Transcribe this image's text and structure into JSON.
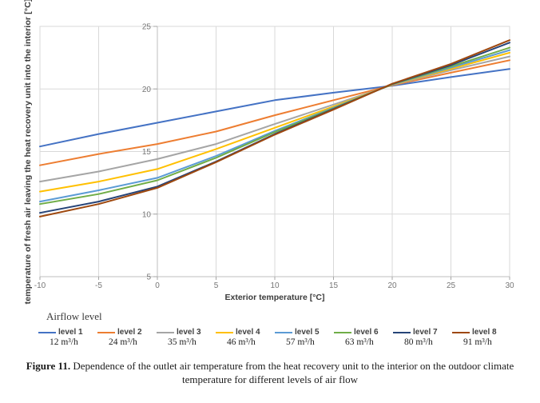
{
  "legend": {
    "title": "Airflow level"
  },
  "caption": {
    "label": "Figure 11.",
    "text": " Dependence of the outlet air temperature from the heat recovery unit to the interior on the outdoor climate temperature for different levels of air flow"
  },
  "chart_data": {
    "type": "line",
    "title": "",
    "xlabel": "Exterior temperature [°C]",
    "ylabel": "temperature of fresh air leaving the heat recovery unit into the interior [°C]",
    "x": [
      -10,
      -5,
      0,
      5,
      10,
      15,
      20,
      25,
      30
    ],
    "x_ticks": [
      -10,
      -5,
      0,
      5,
      10,
      15,
      20,
      25,
      30
    ],
    "y_ticks": [
      5,
      10,
      15,
      20,
      25
    ],
    "xlim": [
      -10,
      30
    ],
    "ylim": [
      5,
      25
    ],
    "grid": true,
    "legend_position": "bottom",
    "series": [
      {
        "name": "level 1",
        "flow": "12 m³/h",
        "color": "#4472C4",
        "values": [
          15.4,
          16.4,
          17.3,
          18.2,
          19.1,
          19.7,
          20.25,
          20.95,
          21.6
        ]
      },
      {
        "name": "level 2",
        "flow": "24 m³/h",
        "color": "#ED7D31",
        "values": [
          13.9,
          14.8,
          15.6,
          16.6,
          17.9,
          19.1,
          20.3,
          21.3,
          22.3
        ]
      },
      {
        "name": "level 3",
        "flow": "35 m³/h",
        "color": "#A5A5A5",
        "values": [
          12.6,
          13.4,
          14.4,
          15.6,
          17.2,
          18.75,
          20.32,
          21.5,
          22.6
        ]
      },
      {
        "name": "level 4",
        "flow": "46 m³/h",
        "color": "#FFC000",
        "values": [
          11.8,
          12.6,
          13.6,
          15.2,
          16.9,
          18.6,
          20.35,
          21.6,
          22.9
        ]
      },
      {
        "name": "level 5",
        "flow": "57 m³/h",
        "color": "#5B9BD5",
        "values": [
          11.0,
          11.9,
          12.9,
          14.65,
          16.65,
          18.5,
          20.37,
          21.7,
          23.1
        ]
      },
      {
        "name": "level 6",
        "flow": "63 m³/h",
        "color": "#70AD47",
        "values": [
          10.8,
          11.6,
          12.7,
          14.5,
          16.55,
          18.45,
          20.38,
          21.8,
          23.3
        ]
      },
      {
        "name": "level 7",
        "flow": "80 m³/h",
        "color": "#264478",
        "values": [
          10.1,
          11.0,
          12.2,
          14.2,
          16.4,
          18.4,
          20.4,
          21.9,
          23.7
        ]
      },
      {
        "name": "level 8",
        "flow": "91 m³/h",
        "color": "#9E480E",
        "values": [
          9.8,
          10.8,
          12.1,
          14.15,
          16.35,
          18.35,
          20.42,
          22.0,
          23.9
        ]
      }
    ]
  },
  "style": {
    "grid_color": "#D9D9D9",
    "axis_color": "#BFBFBF",
    "tick_color": "#A6A6A6",
    "tick_label_color": "#767676",
    "axis_title_color": "#3B3B3B"
  }
}
